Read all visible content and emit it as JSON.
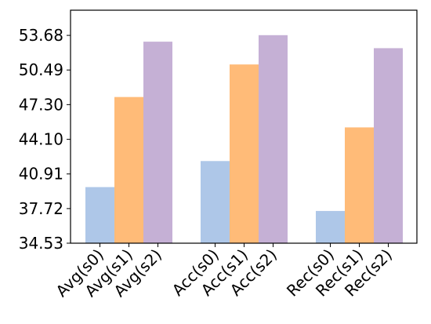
{
  "chart_data": {
    "type": "bar",
    "groups": [
      {
        "categories": [
          "Avg(s0)",
          "Avg(s1)",
          "Avg(s2)"
        ],
        "values": [
          39.7,
          48.0,
          53.1
        ],
        "colors": [
          "#aec7e8",
          "#ffbb78",
          "#c5b0d5"
        ]
      },
      {
        "categories": [
          "Acc(s0)",
          "Acc(s1)",
          "Acc(s2)"
        ],
        "values": [
          42.1,
          51.0,
          53.7
        ],
        "colors": [
          "#aec7e8",
          "#ffbb78",
          "#c5b0d5"
        ]
      },
      {
        "categories": [
          "Rec(s0)",
          "Rec(s1)",
          "Rec(s2)"
        ],
        "values": [
          37.5,
          45.2,
          52.5
        ],
        "colors": [
          "#aec7e8",
          "#ffbb78",
          "#c5b0d5"
        ]
      }
    ],
    "yticks": [
      "34.53",
      "37.72",
      "40.91",
      "44.10",
      "47.30",
      "50.49",
      "53.68"
    ],
    "ylim": [
      34.53,
      56.0
    ],
    "grid": false,
    "title": "",
    "xlabel": "",
    "ylabel": ""
  }
}
